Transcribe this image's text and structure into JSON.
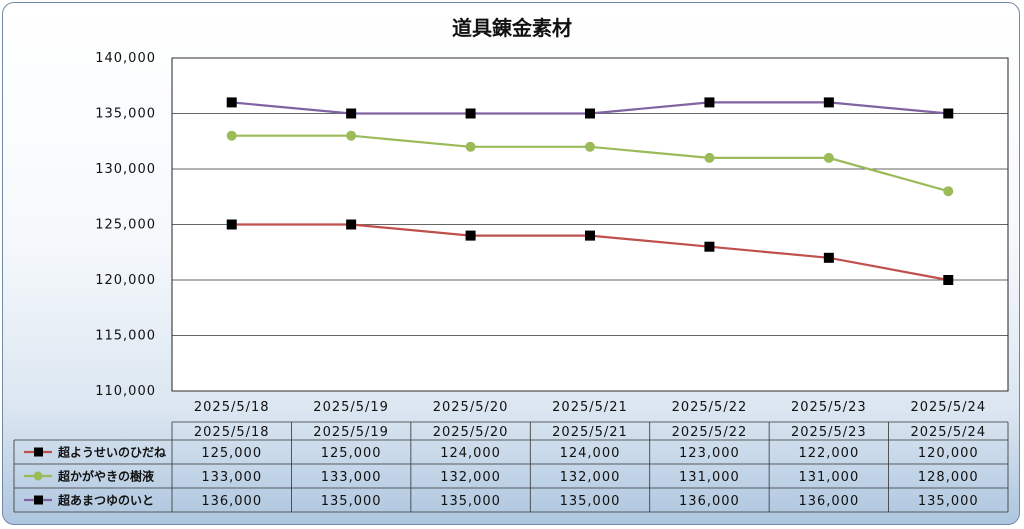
{
  "chart_data": {
    "type": "line",
    "title": "道具錬金素材",
    "categories": [
      "2025/5/18",
      "2025/5/19",
      "2025/5/20",
      "2025/5/21",
      "2025/5/22",
      "2025/5/23",
      "2025/5/24"
    ],
    "ylim": [
      110000,
      140000
    ],
    "yticks": [
      "110,000",
      "115,000",
      "120,000",
      "125,000",
      "130,000",
      "135,000",
      "140,000"
    ],
    "grid": true,
    "legend": "data-table-left",
    "series": [
      {
        "name": "超ようせいのひだね",
        "color": "#c0504d",
        "marker": "square",
        "values": [
          125000,
          125000,
          124000,
          124000,
          123000,
          122000,
          120000
        ],
        "labels": [
          "125,000",
          "125,000",
          "124,000",
          "124,000",
          "123,000",
          "122,000",
          "120,000"
        ]
      },
      {
        "name": "超かがやきの樹液",
        "color": "#9bbb59",
        "marker": "circle",
        "values": [
          133000,
          133000,
          132000,
          132000,
          131000,
          131000,
          128000
        ],
        "labels": [
          "133,000",
          "133,000",
          "132,000",
          "132,000",
          "131,000",
          "131,000",
          "128,000"
        ]
      },
      {
        "name": "超あまつゆのいと",
        "color": "#8064a2",
        "marker": "square",
        "values": [
          136000,
          135000,
          135000,
          135000,
          136000,
          136000,
          135000
        ],
        "labels": [
          "136,000",
          "135,000",
          "135,000",
          "135,000",
          "136,000",
          "136,000",
          "135,000"
        ]
      }
    ]
  }
}
